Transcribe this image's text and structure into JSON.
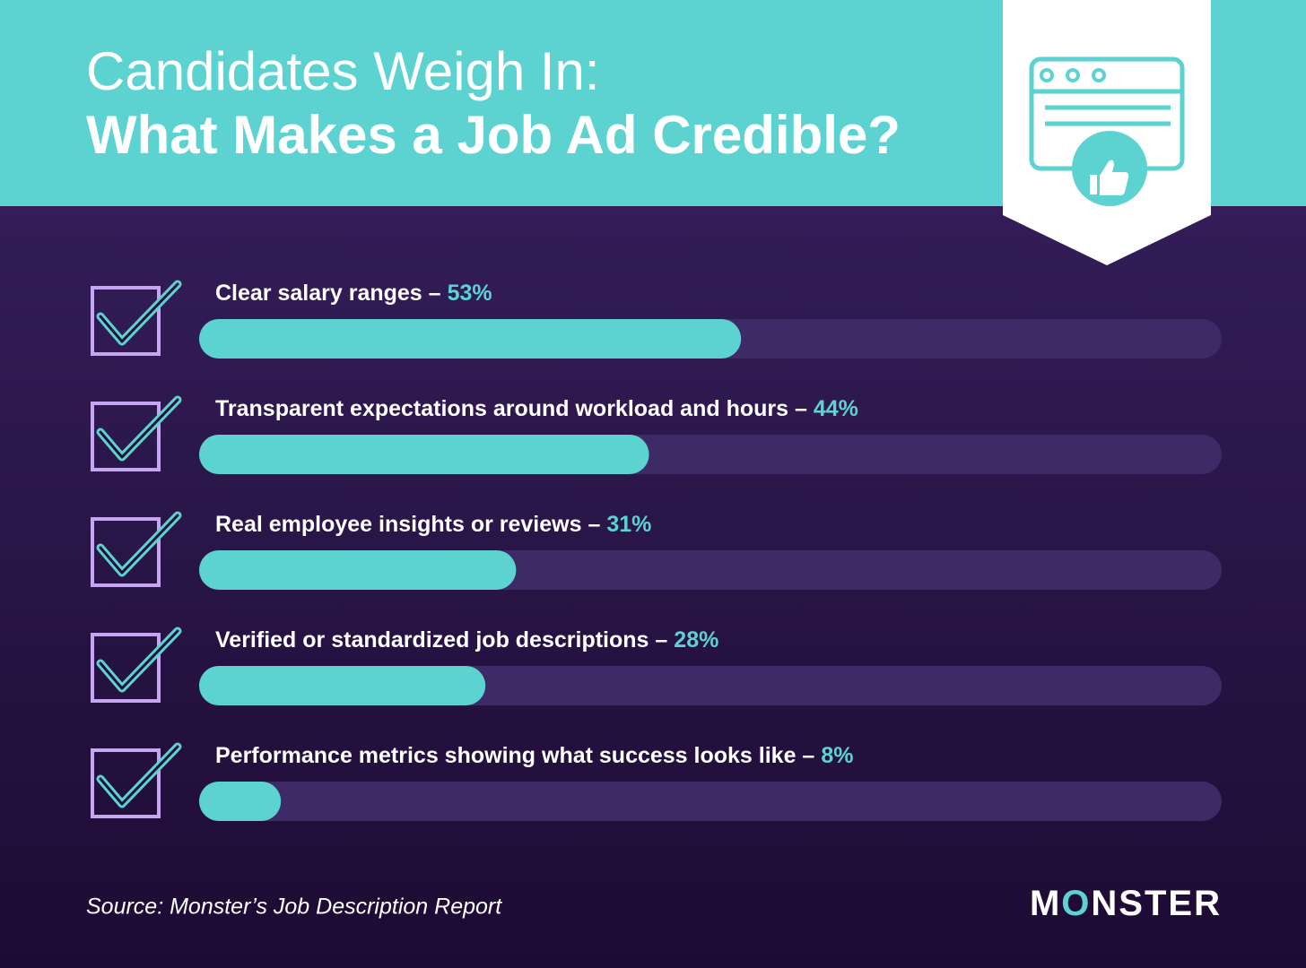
{
  "chart_data": {
    "type": "bar",
    "title": "Candidates Weigh In:",
    "subtitle": "What Makes a Job Ad Credible?",
    "categories": [
      "Clear salary ranges –",
      "Transparent expectations around workload and hours –",
      "Real employee insights or reviews –",
      "Verified or standardized job descriptions –",
      "Performance metrics showing what success looks like –"
    ],
    "values": [
      53,
      44,
      31,
      28,
      8
    ],
    "value_labels": [
      "53%",
      "44%",
      "31%",
      "28%",
      "8%"
    ],
    "color": "#5dd3d1",
    "xlim": [
      0,
      100
    ],
    "source": "Source: Monster’s Job Description Report",
    "logo": "MONSTER"
  }
}
